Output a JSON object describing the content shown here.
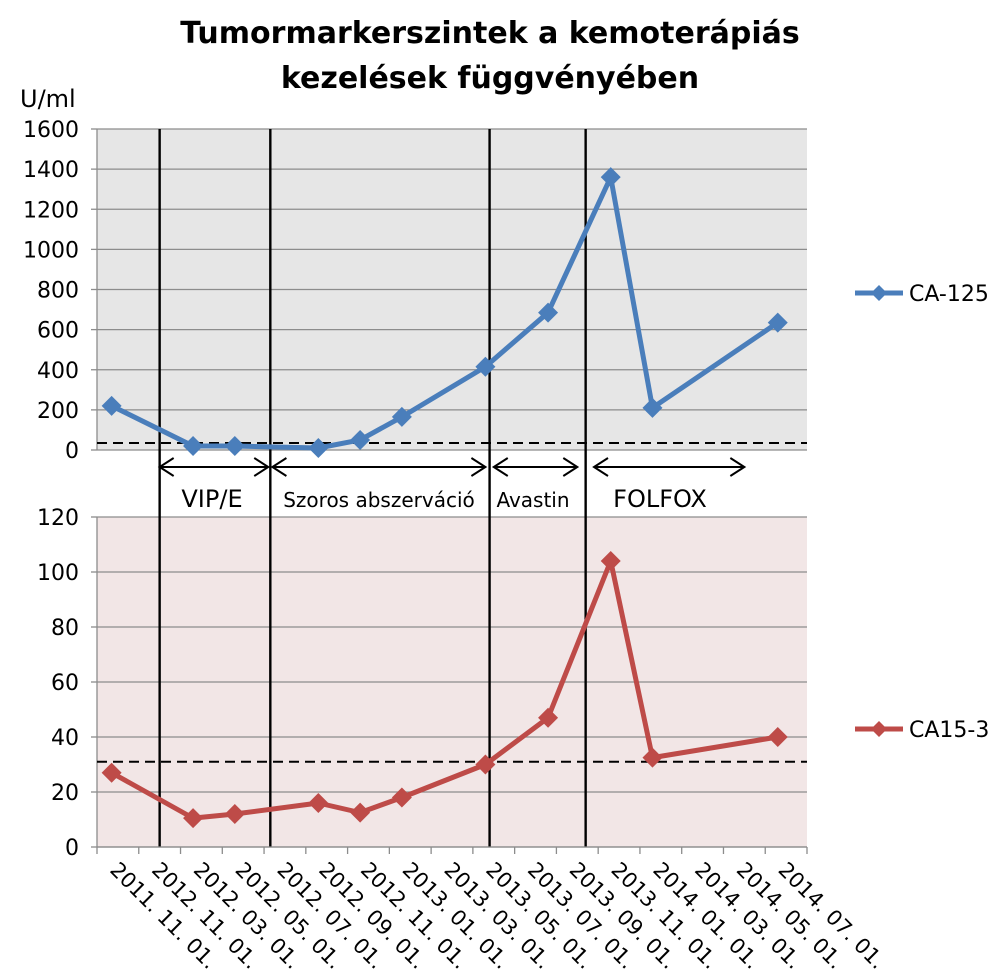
{
  "chart_data": {
    "type": "line",
    "title": [
      "Tumormarkerszintek a kemoterápiás",
      "kezelések függvényében"
    ],
    "unit_label": "U/ml",
    "x_tick_labels": [
      "2011. 11. 01.",
      "2012. 11. 01.",
      "2012. 03. 01.",
      "2012. 05. 01.",
      "2012. 07. 01.",
      "2012. 09. 01.",
      "2012. 11. 01.",
      "2013. 01. 01.",
      "2013. 03. 01.",
      "2013. 05. 01.",
      "2013. 07. 01.",
      "2013. 09. 01.",
      "2013. 11. 01.",
      "2014. 01. 01.",
      "2014. 03. 01.",
      "2014. 05. 01.",
      "2014. 07. 01."
    ],
    "phases": [
      {
        "label": "VIP/E",
        "from_tick": 1.5,
        "to_tick": 4.1
      },
      {
        "label": "Szoros abszerváció",
        "from_tick": 4.2,
        "to_tick": 9.3
      },
      {
        "label": "Avastin",
        "from_tick": 9.5,
        "to_tick": 11.5
      },
      {
        "label": "FOLFOX",
        "from_tick": 11.9,
        "to_tick": 15.5
      }
    ],
    "treatment_boundaries": [
      1.5,
      4.15,
      9.4,
      11.7
    ],
    "panels": [
      {
        "series_name": "CA-125",
        "color": "#4a7ebb",
        "background": "#e6e6e6",
        "ylim": [
          0,
          1600
        ],
        "y_ticks": [
          0,
          200,
          400,
          600,
          800,
          1000,
          1200,
          1400,
          1600
        ],
        "reference_line": 35,
        "points": [
          {
            "x": 0.35,
            "y": 220
          },
          {
            "x": 2.3,
            "y": 20
          },
          {
            "x": 3.3,
            "y": 20
          },
          {
            "x": 5.3,
            "y": 10
          },
          {
            "x": 6.3,
            "y": 50
          },
          {
            "x": 7.3,
            "y": 165
          },
          {
            "x": 9.3,
            "y": 415
          },
          {
            "x": 10.8,
            "y": 685
          },
          {
            "x": 12.3,
            "y": 1360
          },
          {
            "x": 13.3,
            "y": 210
          },
          {
            "x": 16.3,
            "y": 635
          }
        ]
      },
      {
        "series_name": "CA15-3",
        "color": "#be4b48",
        "background": "#f2e6e6",
        "ylim": [
          0,
          120
        ],
        "y_ticks": [
          0,
          20,
          40,
          60,
          80,
          100,
          120
        ],
        "reference_line": 31,
        "points": [
          {
            "x": 0.35,
            "y": 27
          },
          {
            "x": 2.3,
            "y": 10.5
          },
          {
            "x": 3.3,
            "y": 12
          },
          {
            "x": 5.3,
            "y": 16
          },
          {
            "x": 6.3,
            "y": 12.5
          },
          {
            "x": 7.3,
            "y": 18
          },
          {
            "x": 9.3,
            "y": 30
          },
          {
            "x": 10.8,
            "y": 47
          },
          {
            "x": 12.3,
            "y": 104
          },
          {
            "x": 13.3,
            "y": 32.5
          },
          {
            "x": 16.3,
            "y": 40
          }
        ]
      }
    ]
  }
}
